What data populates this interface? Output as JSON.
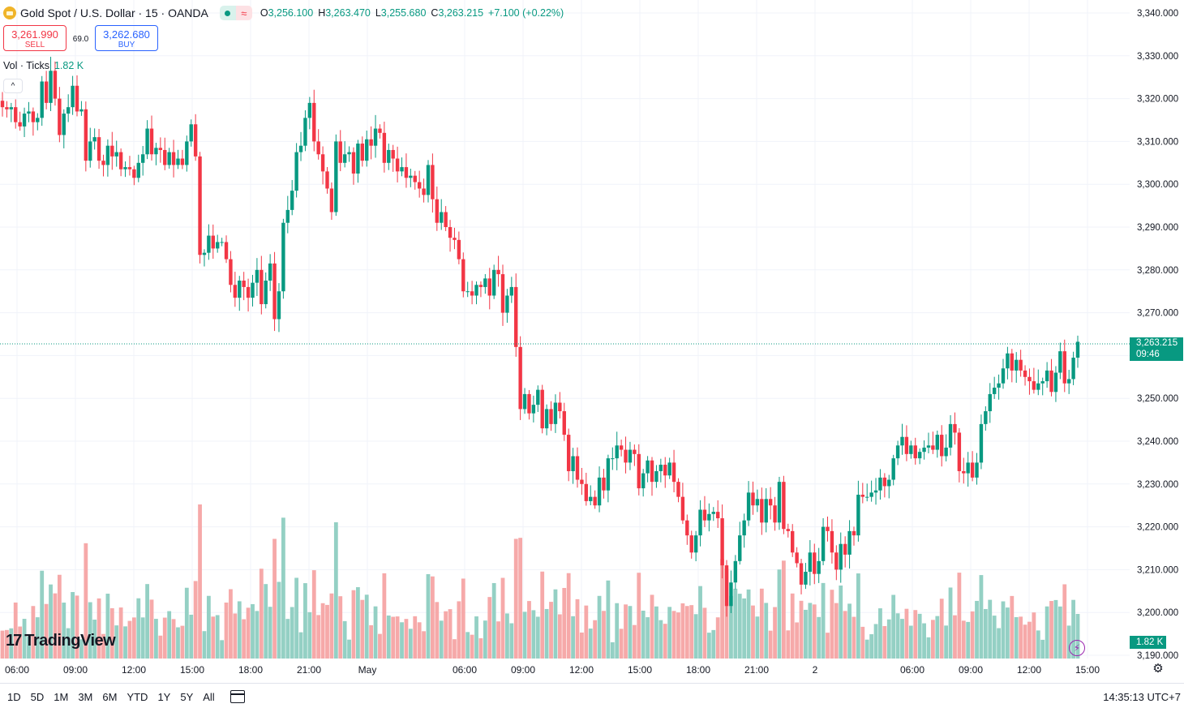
{
  "header": {
    "title": "Gold Spot / U.S. Dollar · 15 · OANDA",
    "market_status_icon": "open-dot-icon",
    "wave_icon": "wave-icon",
    "ohlc": [
      {
        "k": "O",
        "v": "3,256.100"
      },
      {
        "k": "H",
        "v": "3,263.470"
      },
      {
        "k": "L",
        "v": "3,255.680"
      },
      {
        "k": "C",
        "v": "3,263.215"
      }
    ],
    "change": "+7.100 (+0.22%)"
  },
  "trade": {
    "sell_price": "3,261.990",
    "sell_label": "SELL",
    "spread": "69.0",
    "buy_price": "3,262.680",
    "buy_label": "BUY"
  },
  "volume_indicator": {
    "label": "Vol · Ticks",
    "value": "1.82 K"
  },
  "logo_text": "TradingView",
  "badges": {
    "last_price": "3,263.215",
    "countdown": "09:46",
    "last_volume": "1.82 K"
  },
  "bottom": {
    "ranges": [
      "1D",
      "5D",
      "1M",
      "3M",
      "6M",
      "YTD",
      "1Y",
      "5Y",
      "All"
    ],
    "clock": "14:35:13 UTC+7"
  },
  "colors": {
    "up": "#089981",
    "down": "#f23645",
    "vol_up": "#94d0c4",
    "vol_down": "#f6a9a9",
    "grid": "#f0f3fa"
  },
  "chart_data": {
    "type": "candlestick",
    "timeframe": "15",
    "y_ticks": [
      "3,340.000",
      "3,330.000",
      "3,320.000",
      "3,310.000",
      "3,300.000",
      "3,290.000",
      "3,280.000",
      "3,270.000",
      "3,260.000",
      "3,250.000",
      "3,240.000",
      "3,230.000",
      "3,220.000",
      "3,210.000",
      "3,200.000",
      "3,190.000"
    ],
    "x_ticks": [
      "06:00",
      "09:00",
      "12:00",
      "15:00",
      "18:00",
      "21:00",
      "May",
      "06:00",
      "09:00",
      "12:00",
      "15:00",
      "18:00",
      "21:00",
      "2",
      "06:00",
      "09:00",
      "12:00",
      "15:00"
    ],
    "ylim": [
      3190,
      3340
    ],
    "last_price": 3263.215,
    "close": [
      3318.0,
      3317.5,
      3318.0,
      3314.5,
      3313.5,
      3316.5,
      3317.0,
      3314.5,
      3315.5,
      3324.0,
      3319.0,
      3326.5,
      3320.0,
      3311.5,
      3316.5,
      3318.0,
      3323.0,
      3317.0,
      3317.5,
      3305.5,
      3310.0,
      3311.0,
      3305.5,
      3304.5,
      3309.0,
      3306.5,
      3307.5,
      3303.5,
      3304.0,
      3303.5,
      3301.5,
      3305.0,
      3307.0,
      3313.0,
      3307.0,
      3308.5,
      3308.0,
      3304.5,
      3307.5,
      3304.5,
      3306.0,
      3304.5,
      3310.0,
      3314.0,
      3306.5,
      3283.5,
      3284.0,
      3288.0,
      3285.0,
      3286.5,
      3286.5,
      3282.5,
      3276.5,
      3273.5,
      3277.5,
      3276.0,
      3273.5,
      3277.0,
      3280.0,
      3272.0,
      3277.5,
      3281.5,
      3268.5,
      3275.0,
      3291.0,
      3294.0,
      3298.5,
      3307.5,
      3309.0,
      3315.5,
      3319.0,
      3310.0,
      3307.0,
      3303.0,
      3299.0,
      3293.5,
      3310.0,
      3305.0,
      3307.0,
      3307.5,
      3302.5,
      3309.5,
      3305.5,
      3310.5,
      3309.0,
      3313.0,
      3312.0,
      3305.0,
      3308.0,
      3306.0,
      3303.0,
      3304.0,
      3301.5,
      3302.0,
      3300.5,
      3299.0,
      3297.5,
      3304.5,
      3296.5,
      3291.0,
      3293.5,
      3290.0,
      3287.5,
      3287.0,
      3282.5,
      3275.0,
      3275.0,
      3274.0,
      3276.5,
      3276.0,
      3278.0,
      3274.0,
      3280.0,
      3279.0,
      3270.0,
      3274.0,
      3276.0,
      3262.0,
      3247.5,
      3251.0,
      3246.5,
      3248.5,
      3252.0,
      3243.0,
      3247.5,
      3244.0,
      3249.0,
      3247.0,
      3241.5,
      3233.0,
      3236.5,
      3231.0,
      3230.0,
      3226.0,
      3227.0,
      3225.0,
      3231.5,
      3228.5,
      3236.0,
      3236.0,
      3239.0,
      3238.0,
      3235.0,
      3238.0,
      3237.0,
      3229.0,
      3232.5,
      3235.5,
      3230.5,
      3233.0,
      3234.5,
      3232.0,
      3235.0,
      3230.5,
      3227.0,
      3221.5,
      3218.0,
      3214.0,
      3218.0,
      3224.0,
      3221.5,
      3223.0,
      3223.5,
      3222.0,
      3211.0,
      3201.5,
      3207.0,
      3212.0,
      3218.0,
      3221.5,
      3228.0,
      3225.0,
      3226.5,
      3221.0,
      3226.5,
      3225.0,
      3221.0,
      3230.5,
      3219.5,
      3219.0,
      3214.0,
      3211.5,
      3206.5,
      3209.5,
      3214.0,
      3209.0,
      3212.0,
      3220.0,
      3219.0,
      3214.0,
      3210.0,
      3216.0,
      3213.5,
      3219.0,
      3218.0,
      3227.5,
      3227.0,
      3227.0,
      3228.0,
      3228.5,
      3231.5,
      3229.5,
      3231.0,
      3236.0,
      3239.0,
      3241.0,
      3237.0,
      3239.0,
      3236.0,
      3237.5,
      3238.5,
      3239.0,
      3238.0,
      3241.5,
      3236.5,
      3238.5,
      3244.0,
      3242.0,
      3233.0,
      3232.5,
      3235.0,
      3231.5,
      3235.0,
      3244.0,
      3247.0,
      3251.0,
      3252.5,
      3253.5,
      3257.0,
      3260.5,
      3256.5,
      3259.0,
      3256.5,
      3255.0,
      3254.0,
      3252.0,
      3253.5,
      3254.0,
      3256.5,
      3251.5,
      3256.0,
      3261.0,
      3253.5,
      3254.5,
      3259.5,
      3263.215
    ]
  }
}
